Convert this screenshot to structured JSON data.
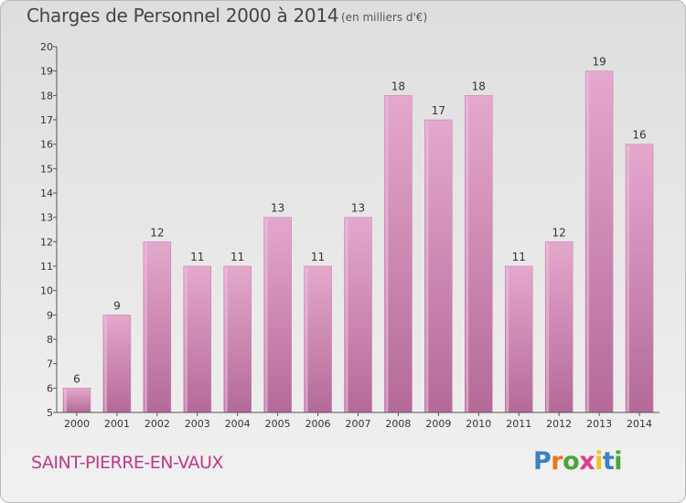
{
  "header": {
    "title": "Charges de Personnel 2000 à 2014",
    "subtitle": "(en milliers d'€)"
  },
  "footer": {
    "commune": "SAINT-PIERRE-EN-VAUX",
    "logo_text": "Proxiti",
    "logo_colors": [
      "#3b7fc4",
      "#e8761b",
      "#4aa538",
      "#e03a8c",
      "#f2c21b",
      "#3b7fc4",
      "#4aa538"
    ]
  },
  "chart_data": {
    "type": "bar",
    "categories": [
      "2000",
      "2001",
      "2002",
      "2003",
      "2004",
      "2005",
      "2006",
      "2007",
      "2008",
      "2009",
      "2010",
      "2011",
      "2012",
      "2013",
      "2014"
    ],
    "values": [
      6,
      9,
      12,
      11,
      11,
      13,
      11,
      13,
      18,
      17,
      18,
      11,
      12,
      19,
      16
    ],
    "title": "Charges de Personnel 2000 à 2014",
    "subtitle": "(en milliers d'€)",
    "xlabel": "",
    "ylabel": "",
    "ylim": [
      5,
      20
    ],
    "yticks": [
      5,
      6,
      7,
      8,
      9,
      10,
      11,
      12,
      13,
      14,
      15,
      16,
      17,
      18,
      19,
      20
    ],
    "grid": false,
    "data_labels": true,
    "bar_color": "#d98fbc"
  }
}
